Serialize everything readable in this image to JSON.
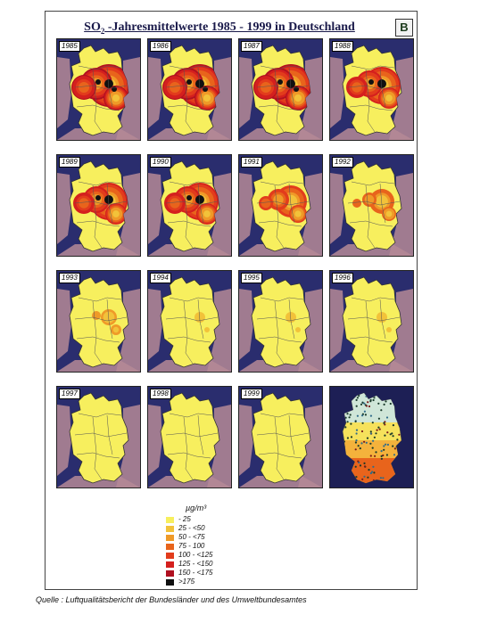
{
  "title": {
    "prefix": "SO",
    "sub": "2",
    "suffix": " -Jahresmittelwerte  1985 - 1999  in Deutschland"
  },
  "logo": "B",
  "maps": [
    {
      "year": "1985",
      "level": 6
    },
    {
      "year": "1986",
      "level": 6
    },
    {
      "year": "1987",
      "level": 6
    },
    {
      "year": "1988",
      "level": 5
    },
    {
      "year": "1989",
      "level": 5
    },
    {
      "year": "1990",
      "level": 5
    },
    {
      "year": "1991",
      "level": 4
    },
    {
      "year": "1992",
      "level": 3
    },
    {
      "year": "1993",
      "level": 2
    },
    {
      "year": "1994",
      "level": 1
    },
    {
      "year": "1995",
      "level": 1
    },
    {
      "year": "1996",
      "level": 1
    },
    {
      "year": "1997",
      "level": 0
    },
    {
      "year": "1998",
      "level": 0
    },
    {
      "year": "1999",
      "level": 0
    }
  ],
  "legend": {
    "unit": "µg/m³",
    "classes": [
      {
        "label": "- 25",
        "color": "#f7ef5e"
      },
      {
        "label": "25 - <50",
        "color": "#f2c23a"
      },
      {
        "label": "50 - <75",
        "color": "#ef9a28"
      },
      {
        "label": "75 - 100",
        "color": "#e8641c"
      },
      {
        "label": "100 - <125",
        "color": "#e23c1c"
      },
      {
        "label": "125 - <150",
        "color": "#d4201e"
      },
      {
        "label": "150 - <175",
        "color": "#b01020"
      },
      {
        "label": ">175",
        "color": "#111111"
      }
    ]
  },
  "source": "Quelle : Luftqualitätsbericht der Bundesländer und des Umweltbundesamtes",
  "colors": {
    "sea": "#2a2d6e",
    "neighbor": "#b58a96",
    "land": "#f5ec6a",
    "border": "#555555"
  }
}
